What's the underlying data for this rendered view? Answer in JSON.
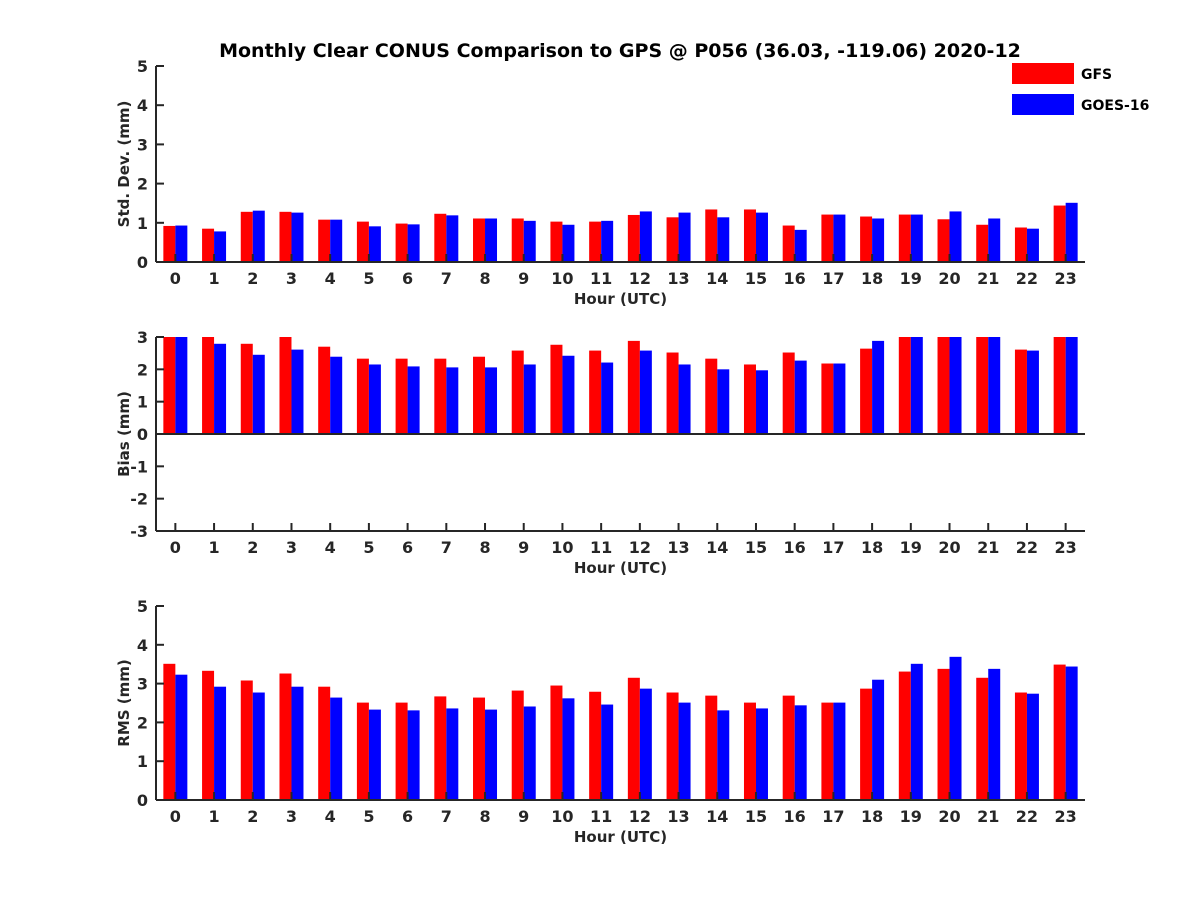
{
  "colors": {
    "gfs": "#ff0000",
    "goes": "#0000ff"
  },
  "chart_data": [
    {
      "type": "bar",
      "title": "Monthly Clear CONUS Comparison to GPS @ P056 (36.03, -119.06) 2020-12",
      "xlabel": "Hour (UTC)",
      "ylabel": "Std. Dev. (mm)",
      "ylim": [
        0,
        5
      ],
      "yticks": [
        0,
        1,
        2,
        3,
        4,
        5
      ],
      "categories": [
        "0",
        "1",
        "2",
        "3",
        "4",
        "5",
        "6",
        "7",
        "8",
        "9",
        "10",
        "11",
        "12",
        "13",
        "14",
        "15",
        "16",
        "17",
        "18",
        "19",
        "20",
        "21",
        "22",
        "23"
      ],
      "legend": "top-right",
      "series": [
        {
          "name": "GFS",
          "values": [
            0.92,
            0.85,
            1.28,
            1.28,
            1.08,
            1.03,
            0.98,
            1.23,
            1.11,
            1.11,
            1.03,
            1.03,
            1.2,
            1.14,
            1.34,
            1.34,
            0.93,
            1.21,
            1.16,
            1.21,
            1.09,
            0.95,
            0.88,
            1.44
          ]
        },
        {
          "name": "GOES-16",
          "values": [
            0.93,
            0.78,
            1.31,
            1.26,
            1.08,
            0.91,
            0.96,
            1.19,
            1.11,
            1.05,
            0.95,
            1.05,
            1.29,
            1.26,
            1.14,
            1.26,
            0.82,
            1.21,
            1.11,
            1.21,
            1.29,
            1.11,
            0.85,
            1.51
          ]
        }
      ]
    },
    {
      "type": "bar",
      "title": "",
      "xlabel": "Hour (UTC)",
      "ylabel": "Bias (mm)",
      "ylim": [
        -3,
        3
      ],
      "yticks": [
        -3,
        -2,
        -1,
        0,
        1,
        2,
        3
      ],
      "categories": [
        "0",
        "1",
        "2",
        "3",
        "4",
        "5",
        "6",
        "7",
        "8",
        "9",
        "10",
        "11",
        "12",
        "13",
        "14",
        "15",
        "16",
        "17",
        "18",
        "19",
        "20",
        "21",
        "22",
        "23"
      ],
      "series": [
        {
          "name": "GFS",
          "values": [
            3.0,
            3.0,
            2.79,
            3.0,
            2.7,
            2.33,
            2.33,
            2.33,
            2.39,
            2.58,
            2.76,
            2.58,
            2.88,
            2.52,
            2.33,
            2.15,
            2.52,
            2.18,
            2.64,
            3.0,
            3.0,
            3.0,
            2.61,
            3.0
          ]
        },
        {
          "name": "GOES-16",
          "values": [
            3.0,
            2.79,
            2.45,
            2.61,
            2.39,
            2.15,
            2.09,
            2.06,
            2.06,
            2.15,
            2.42,
            2.21,
            2.58,
            2.15,
            2.0,
            1.97,
            2.27,
            2.18,
            2.88,
            3.0,
            3.0,
            3.0,
            2.58,
            3.0
          ]
        }
      ]
    },
    {
      "type": "bar",
      "title": "",
      "xlabel": "Hour (UTC)",
      "ylabel": "RMS (mm)",
      "ylim": [
        0,
        5
      ],
      "yticks": [
        0,
        1,
        2,
        3,
        4,
        5
      ],
      "categories": [
        "0",
        "1",
        "2",
        "3",
        "4",
        "5",
        "6",
        "7",
        "8",
        "9",
        "10",
        "11",
        "12",
        "13",
        "14",
        "15",
        "16",
        "17",
        "18",
        "19",
        "20",
        "21",
        "22",
        "23"
      ],
      "series": [
        {
          "name": "GFS",
          "values": [
            3.51,
            3.33,
            3.08,
            3.26,
            2.92,
            2.51,
            2.51,
            2.67,
            2.64,
            2.82,
            2.95,
            2.79,
            3.15,
            2.77,
            2.69,
            2.51,
            2.69,
            2.51,
            2.87,
            3.31,
            3.38,
            3.15,
            2.77,
            3.49
          ]
        },
        {
          "name": "GOES-16",
          "values": [
            3.23,
            2.92,
            2.77,
            2.92,
            2.64,
            2.33,
            2.31,
            2.36,
            2.33,
            2.41,
            2.62,
            2.46,
            2.87,
            2.51,
            2.31,
            2.36,
            2.44,
            2.51,
            3.1,
            3.51,
            3.69,
            3.38,
            2.74,
            3.44
          ]
        }
      ]
    }
  ]
}
